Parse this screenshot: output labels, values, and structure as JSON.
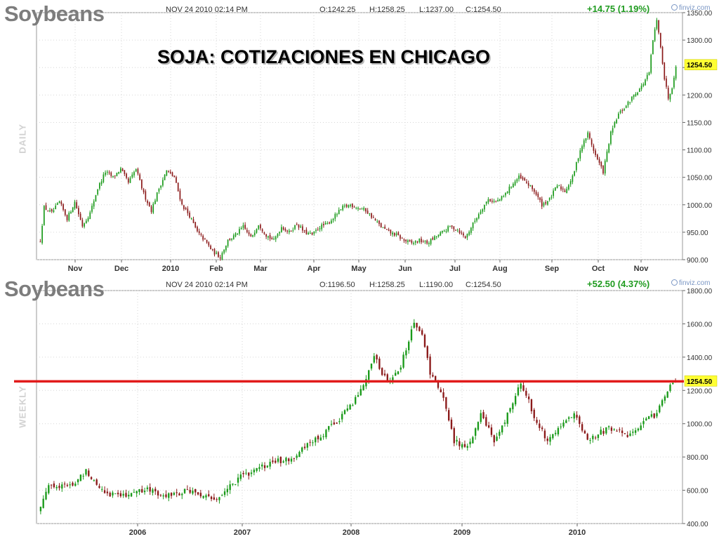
{
  "headline": "SOJA: COTIZACIONES EN CHICAGO",
  "colors": {
    "up": "#1a9a1a",
    "down": "#8b1a1a",
    "hline": "#e11b1b",
    "last_tag": "#ffff33",
    "grid": "#d6d6d6"
  },
  "chart_data": [
    {
      "type": "candlestick",
      "title": "Soybeans",
      "period_label": "DAILY",
      "header": {
        "date": "NOV 24 2010 02:14 PM",
        "open": "O:1242.25",
        "high": "H:1258.25",
        "low": "L:1237.00",
        "close": "C:1254.50",
        "change": "+14.75 (1.19%)",
        "brand": "finviz.com"
      },
      "ylim": [
        900,
        1350
      ],
      "y_ticks": [
        "900.00",
        "950.00",
        "1000.00",
        "1050.00",
        "1100.00",
        "1150.00",
        "1200.00",
        "1250.00",
        "1300.00",
        "1350.00"
      ],
      "x_ticks": [
        "Nov",
        "Dec",
        "2010",
        "Feb",
        "Mar",
        "Apr",
        "May",
        "Jun",
        "Jul",
        "Aug",
        "Sep",
        "Oct",
        "Nov"
      ],
      "last_value": 1254.5,
      "last_label": "1254.50",
      "grid": true,
      "anchors": [
        [
          0,
          935
        ],
        [
          2,
          995
        ],
        [
          6,
          985
        ],
        [
          10,
          1005
        ],
        [
          14,
          975
        ],
        [
          18,
          1005
        ],
        [
          22,
          962
        ],
        [
          26,
          985
        ],
        [
          30,
          1030
        ],
        [
          34,
          1060
        ],
        [
          38,
          1050
        ],
        [
          42,
          1065
        ],
        [
          46,
          1040
        ],
        [
          50,
          1065
        ],
        [
          54,
          1020
        ],
        [
          58,
          990
        ],
        [
          62,
          1030
        ],
        [
          66,
          1062
        ],
        [
          70,
          1050
        ],
        [
          74,
          1000
        ],
        [
          78,
          980
        ],
        [
          82,
          950
        ],
        [
          86,
          935
        ],
        [
          90,
          915
        ],
        [
          94,
          905
        ],
        [
          98,
          935
        ],
        [
          102,
          945
        ],
        [
          106,
          960
        ],
        [
          110,
          940
        ],
        [
          114,
          965
        ],
        [
          118,
          945
        ],
        [
          122,
          935
        ],
        [
          126,
          960
        ],
        [
          130,
          950
        ],
        [
          134,
          965
        ],
        [
          138,
          950
        ],
        [
          142,
          945
        ],
        [
          146,
          960
        ],
        [
          150,
          965
        ],
        [
          154,
          980
        ],
        [
          158,
          995
        ],
        [
          162,
          1000
        ],
        [
          166,
          995
        ],
        [
          170,
          990
        ],
        [
          174,
          975
        ],
        [
          178,
          960
        ],
        [
          182,
          950
        ],
        [
          186,
          945
        ],
        [
          190,
          935
        ],
        [
          194,
          930
        ],
        [
          198,
          935
        ],
        [
          202,
          930
        ],
        [
          206,
          940
        ],
        [
          210,
          950
        ],
        [
          214,
          960
        ],
        [
          218,
          955
        ],
        [
          222,
          940
        ],
        [
          226,
          965
        ],
        [
          230,
          990
        ],
        [
          234,
          1010
        ],
        [
          238,
          1005
        ],
        [
          242,
          1015
        ],
        [
          246,
          1035
        ],
        [
          250,
          1050
        ],
        [
          254,
          1040
        ],
        [
          258,
          1025
        ],
        [
          262,
          1000
        ],
        [
          266,
          1010
        ],
        [
          270,
          1035
        ],
        [
          274,
          1025
        ],
        [
          278,
          1050
        ],
        [
          282,
          1100
        ],
        [
          286,
          1130
        ],
        [
          290,
          1090
        ],
        [
          294,
          1060
        ],
        [
          298,
          1130
        ],
        [
          302,
          1165
        ],
        [
          306,
          1180
        ],
        [
          310,
          1200
        ],
        [
          314,
          1215
        ],
        [
          318,
          1240
        ],
        [
          320,
          1300
        ],
        [
          322,
          1335
        ],
        [
          324,
          1290
        ],
        [
          326,
          1230
        ],
        [
          328,
          1195
        ],
        [
          330,
          1215
        ],
        [
          332,
          1254.5
        ]
      ]
    },
    {
      "type": "candlestick",
      "title": "Soybeans",
      "period_label": "WEEKLY",
      "header": {
        "date": "NOV 24 2010 02:14 PM",
        "open": "O:1196.50",
        "high": "H:1258.25",
        "low": "L:1190.00",
        "close": "C:1254.50",
        "change": "+52.50 (4.37%)",
        "brand": "finviz.com"
      },
      "ylim": [
        400,
        1800
      ],
      "y_ticks": [
        "400.00",
        "600.00",
        "800.00",
        "1000.00",
        "1200.00",
        "1400.00",
        "1600.00",
        "1800.00"
      ],
      "x_ticks": [
        "2006",
        "2007",
        "2008",
        "2009",
        "2010"
      ],
      "last_value": 1254.5,
      "last_label": "1254.50",
      "horizontal_line": 1254.5,
      "grid": true,
      "anchors": [
        [
          0,
          500
        ],
        [
          3,
          640
        ],
        [
          8,
          620
        ],
        [
          13,
          640
        ],
        [
          17,
          720
        ],
        [
          21,
          640
        ],
        [
          25,
          580
        ],
        [
          30,
          570
        ],
        [
          35,
          590
        ],
        [
          40,
          600
        ],
        [
          45,
          580
        ],
        [
          50,
          570
        ],
        [
          55,
          600
        ],
        [
          60,
          570
        ],
        [
          65,
          540
        ],
        [
          70,
          610
        ],
        [
          75,
          680
        ],
        [
          80,
          720
        ],
        [
          85,
          750
        ],
        [
          90,
          780
        ],
        [
          95,
          800
        ],
        [
          100,
          870
        ],
        [
          105,
          920
        ],
        [
          110,
          1000
        ],
        [
          115,
          1080
        ],
        [
          120,
          1200
        ],
        [
          125,
          1400
        ],
        [
          130,
          1250
        ],
        [
          135,
          1350
        ],
        [
          140,
          1600
        ],
        [
          143,
          1550
        ],
        [
          146,
          1300
        ],
        [
          150,
          1200
        ],
        [
          155,
          900
        ],
        [
          160,
          850
        ],
        [
          165,
          1050
        ],
        [
          170,
          900
        ],
        [
          175,
          1050
        ],
        [
          180,
          1250
        ],
        [
          185,
          1050
        ],
        [
          190,
          900
        ],
        [
          195,
          1000
        ],
        [
          200,
          1050
        ],
        [
          205,
          900
        ],
        [
          210,
          950
        ],
        [
          215,
          980
        ],
        [
          220,
          920
        ],
        [
          225,
          1000
        ],
        [
          230,
          1050
        ],
        [
          235,
          1200
        ],
        [
          238,
          1254.5
        ]
      ]
    }
  ]
}
